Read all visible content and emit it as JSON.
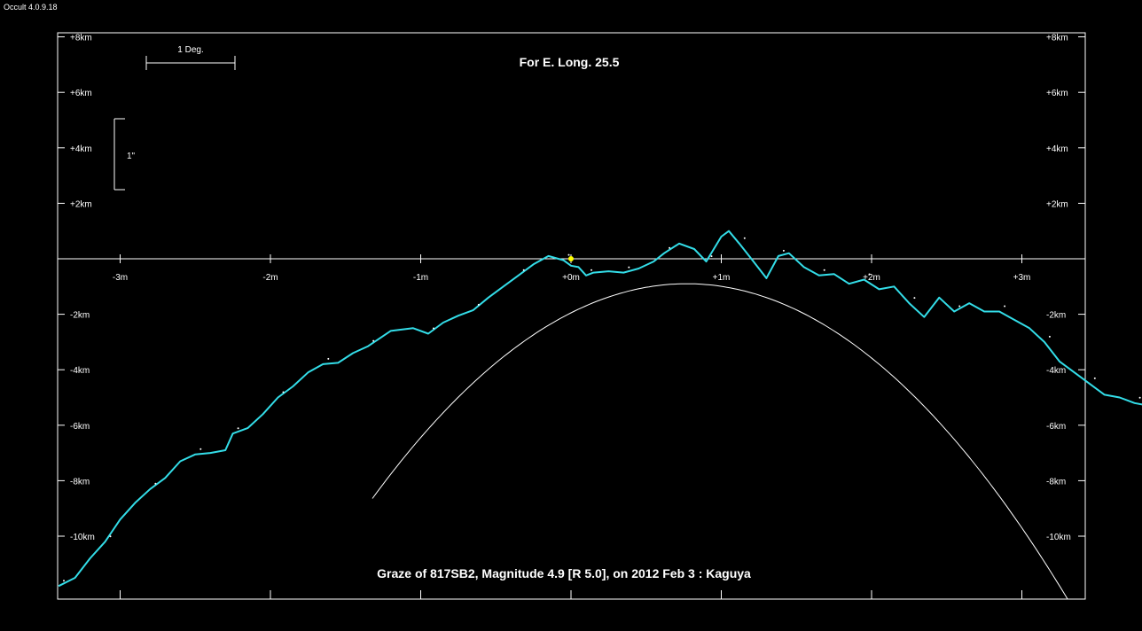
{
  "app": {
    "title": "Occult 4.0.9.18"
  },
  "chart_data": {
    "type": "line",
    "title": "For E. Long. 25.5",
    "caption": "Graze of  817SB2,  Magnitude 4.9 [R 5.0],  on 2012 Feb  3  :  Kaguya",
    "scale_bars": {
      "horizontal_label": "1 Deg.",
      "vertical_label": "1\""
    },
    "x_axis": {
      "range_m": [
        -3.42,
        3.42
      ],
      "ticks": [
        -3,
        -2,
        -1,
        0,
        1,
        2,
        3
      ],
      "tick_labels": [
        "-3m",
        "-2m",
        "-1m",
        "+0m",
        "+1m",
        "+2m",
        "+3m"
      ]
    },
    "y_axis": {
      "range_km": [
        -12.3,
        8.2
      ],
      "ticks": [
        8,
        6,
        4,
        2,
        -2,
        -4,
        -6,
        -8,
        -10
      ],
      "tick_labels": [
        "+8km",
        "+6km",
        "+4km",
        "+2km",
        "-2km",
        "-4km",
        "-6km",
        "-8km",
        "-10km"
      ]
    },
    "center_marker": {
      "x": 0,
      "y": 0
    },
    "colors": {
      "profile": "#33dde8",
      "curve": "#ffffff",
      "marker": "#ffff00"
    },
    "series": [
      {
        "type": "limb-profile",
        "points": [
          [
            -3.41,
            -11.8
          ],
          [
            -3.3,
            -11.5
          ],
          [
            -3.2,
            -10.8
          ],
          [
            -3.1,
            -10.2
          ],
          [
            -3.0,
            -9.4
          ],
          [
            -2.9,
            -8.8
          ],
          [
            -2.8,
            -8.3
          ],
          [
            -2.7,
            -7.9
          ],
          [
            -2.6,
            -7.3
          ],
          [
            -2.5,
            -7.05
          ],
          [
            -2.4,
            -7.0
          ],
          [
            -2.3,
            -6.9
          ],
          [
            -2.25,
            -6.3
          ],
          [
            -2.15,
            -6.1
          ],
          [
            -2.05,
            -5.6
          ],
          [
            -1.95,
            -5.0
          ],
          [
            -1.85,
            -4.6
          ],
          [
            -1.75,
            -4.1
          ],
          [
            -1.65,
            -3.8
          ],
          [
            -1.55,
            -3.75
          ],
          [
            -1.45,
            -3.4
          ],
          [
            -1.35,
            -3.15
          ],
          [
            -1.2,
            -2.6
          ],
          [
            -1.05,
            -2.5
          ],
          [
            -0.95,
            -2.7
          ],
          [
            -0.85,
            -2.3
          ],
          [
            -0.75,
            -2.05
          ],
          [
            -0.65,
            -1.85
          ],
          [
            -0.55,
            -1.4
          ],
          [
            -0.45,
            -1.0
          ],
          [
            -0.35,
            -0.6
          ],
          [
            -0.25,
            -0.2
          ],
          [
            -0.15,
            0.1
          ],
          [
            -0.05,
            -0.05
          ],
          [
            0.0,
            -0.25
          ],
          [
            0.05,
            -0.3
          ],
          [
            0.1,
            -0.6
          ],
          [
            0.15,
            -0.5
          ],
          [
            0.25,
            -0.45
          ],
          [
            0.35,
            -0.5
          ],
          [
            0.45,
            -0.35
          ],
          [
            0.55,
            -0.1
          ],
          [
            0.62,
            0.2
          ],
          [
            0.72,
            0.55
          ],
          [
            0.82,
            0.35
          ],
          [
            0.9,
            -0.1
          ],
          [
            1.0,
            0.8
          ],
          [
            1.05,
            1.0
          ],
          [
            1.12,
            0.55
          ],
          [
            1.2,
            0.0
          ],
          [
            1.3,
            -0.7
          ],
          [
            1.38,
            0.1
          ],
          [
            1.45,
            0.2
          ],
          [
            1.55,
            -0.3
          ],
          [
            1.65,
            -0.6
          ],
          [
            1.75,
            -0.55
          ],
          [
            1.85,
            -0.9
          ],
          [
            1.95,
            -0.75
          ],
          [
            2.05,
            -1.1
          ],
          [
            2.15,
            -1.0
          ],
          [
            2.25,
            -1.6
          ],
          [
            2.35,
            -2.1
          ],
          [
            2.45,
            -1.4
          ],
          [
            2.55,
            -1.9
          ],
          [
            2.65,
            -1.6
          ],
          [
            2.75,
            -1.9
          ],
          [
            2.85,
            -1.9
          ],
          [
            2.95,
            -2.2
          ],
          [
            3.05,
            -2.5
          ],
          [
            3.15,
            -3.0
          ],
          [
            3.25,
            -3.7
          ],
          [
            3.35,
            -4.1
          ],
          [
            3.45,
            -4.5
          ],
          [
            3.55,
            -4.9
          ],
          [
            3.65,
            -5.0
          ],
          [
            3.75,
            -5.2
          ],
          [
            3.85,
            -5.3
          ]
        ]
      }
    ]
  }
}
